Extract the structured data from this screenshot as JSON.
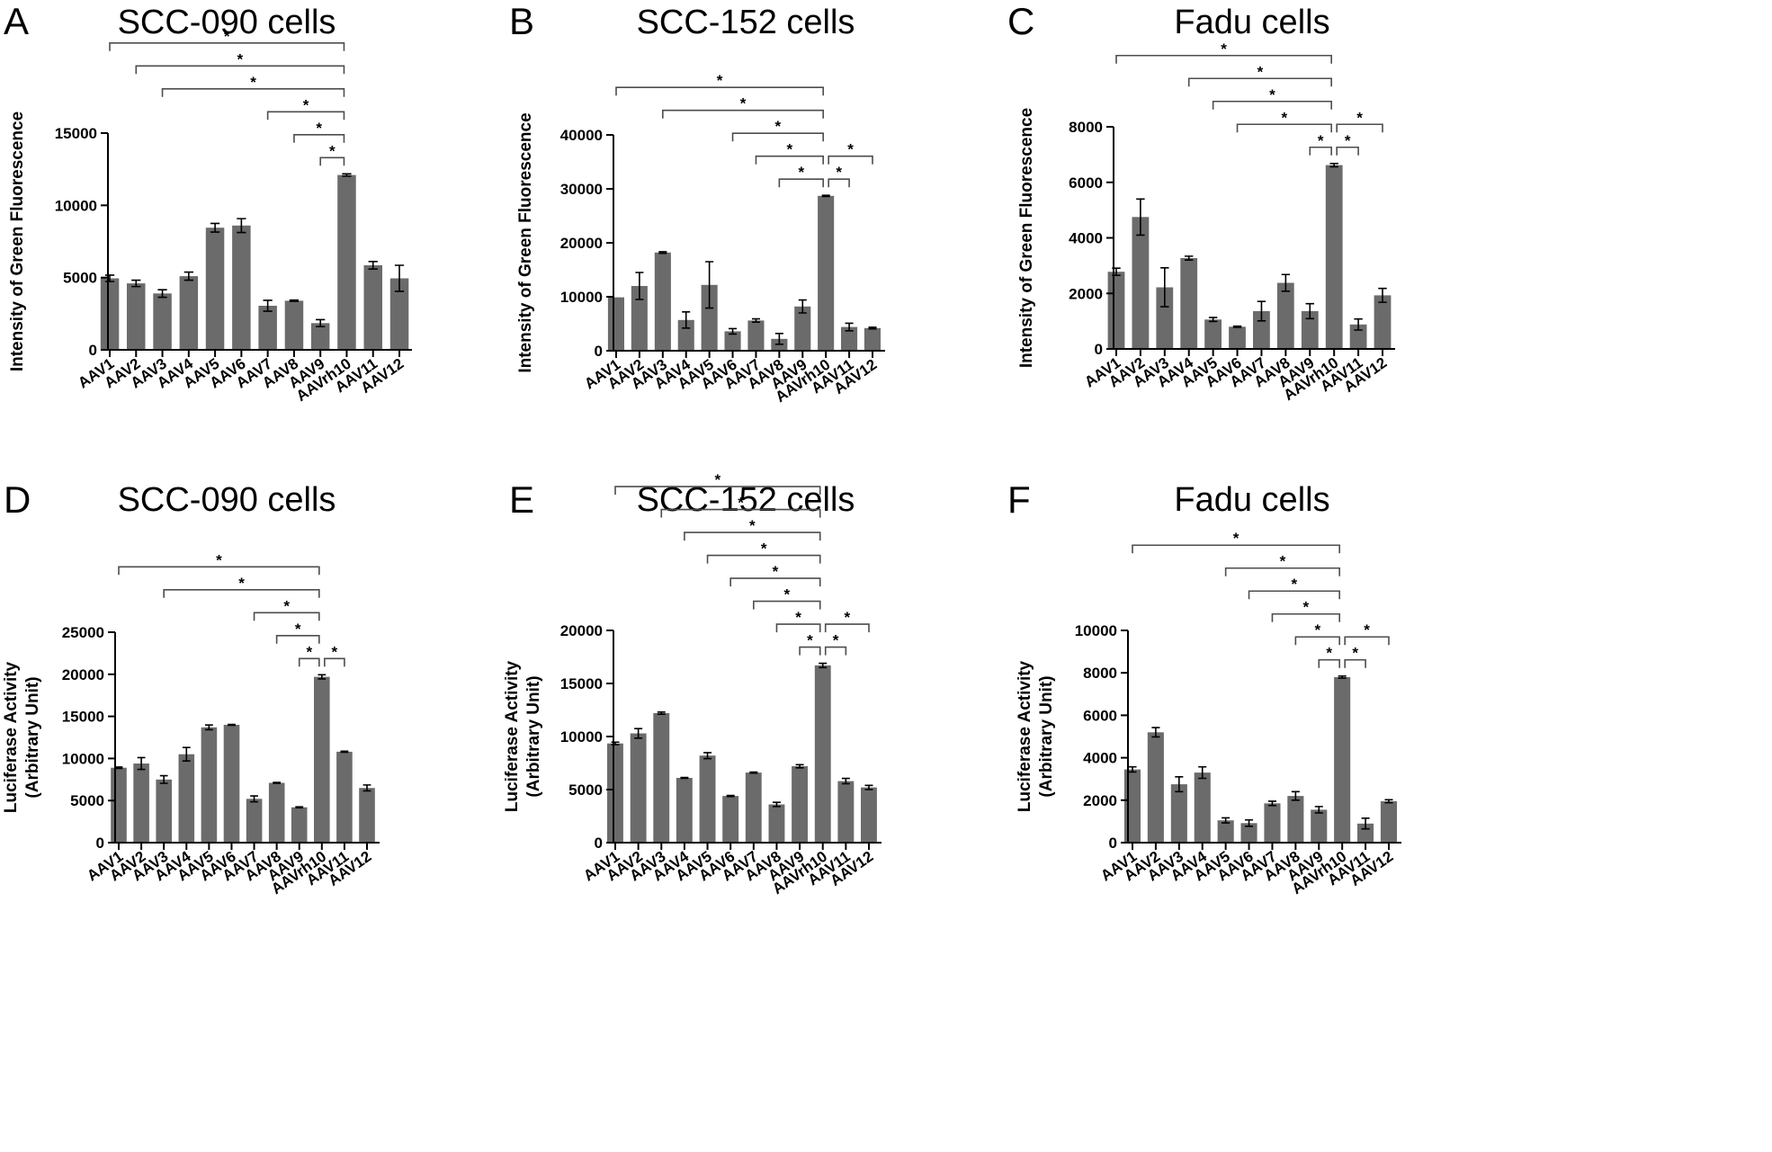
{
  "figure": {
    "caption": ""
  },
  "chart_data": [
    {
      "panel": "A",
      "type": "bar",
      "title": "SCC-090 cells",
      "ylabel": "Intensity of Green Fluorescence",
      "categories": [
        "AAV1",
        "AAV2",
        "AAV3",
        "AAV4",
        "AAV5",
        "AAV6",
        "AAV7",
        "AAV8",
        "AAV9",
        "AAVrh10",
        "AAV11",
        "AAV12"
      ],
      "values": [
        4950,
        4600,
        3900,
        5100,
        8450,
        8600,
        3050,
        3400,
        1850,
        12100,
        5850,
        4950
      ],
      "errors": [
        220,
        220,
        260,
        280,
        300,
        480,
        380,
        40,
        240,
        80,
        260,
        900
      ],
      "ylim": [
        0,
        15000
      ],
      "yticks": [
        0,
        5000,
        10000,
        15000
      ],
      "ytick_labels": [
        "0",
        "5000",
        "10000",
        "15000"
      ],
      "significance": [
        {
          "from": "AAV1",
          "to": "AAVrh10",
          "label": "*"
        },
        {
          "from": "AAV2",
          "to": "AAVrh10",
          "label": "*"
        },
        {
          "from": "AAV3",
          "to": "AAVrh10",
          "label": "*"
        },
        {
          "from": "AAV7",
          "to": "AAVrh10",
          "label": "*"
        },
        {
          "from": "AAV8",
          "to": "AAVrh10",
          "label": "*"
        },
        {
          "from": "AAV9",
          "to": "AAVrh10",
          "label": "*"
        }
      ]
    },
    {
      "panel": "B",
      "type": "bar",
      "title": "SCC-152 cells",
      "ylabel": "Intensity of Green Fluorescence",
      "categories": [
        "AAV1",
        "AAV2",
        "AAV3",
        "AAV4",
        "AAV5",
        "AAV6",
        "AAV7",
        "AAV8",
        "AAV9",
        "AAVrh10",
        "AAV11",
        "AAV12"
      ],
      "values": [
        9900,
        12000,
        18200,
        5700,
        12200,
        3600,
        5600,
        2200,
        8200,
        28700,
        4400,
        4200
      ],
      "errors": [
        0,
        2500,
        150,
        1500,
        4300,
        500,
        300,
        1000,
        1200,
        100,
        700,
        150
      ],
      "ylim": [
        0,
        40000
      ],
      "yticks": [
        0,
        10000,
        20000,
        30000,
        40000
      ],
      "ytick_labels": [
        "0",
        "10000",
        "20000",
        "30000",
        "40000"
      ],
      "significance": [
        {
          "from": "AAV1",
          "to": "AAVrh10",
          "label": "*"
        },
        {
          "from": "AAV3",
          "to": "AAVrh10",
          "label": "*"
        },
        {
          "from": "AAV6",
          "to": "AAVrh10",
          "label": "*"
        },
        {
          "from": "AAV7",
          "to": "AAVrh10",
          "label": "*"
        },
        {
          "from": "AAV8",
          "to": "AAVrh10",
          "label": "*"
        },
        {
          "from": "AAVrh10",
          "to": "AAV11",
          "label": "*"
        },
        {
          "from": "AAVrh10",
          "to": "AAV12",
          "label": "*"
        }
      ]
    },
    {
      "panel": "C",
      "type": "bar",
      "title": "Fadu cells",
      "ylabel": "Intensity of Green Fluorescence",
      "categories": [
        "AAV1",
        "AAV2",
        "AAV3",
        "AAV4",
        "AAV5",
        "AAV6",
        "AAV7",
        "AAV8",
        "AAV9",
        "AAVrh10",
        "AAV11",
        "AAV12"
      ],
      "values": [
        2780,
        4750,
        2220,
        3270,
        1060,
        800,
        1360,
        2380,
        1360,
        6620,
        880,
        1930
      ],
      "errors": [
        130,
        650,
        700,
        70,
        70,
        20,
        350,
        300,
        270,
        60,
        200,
        250
      ],
      "ylim": [
        0,
        8000
      ],
      "yticks": [
        0,
        2000,
        4000,
        6000,
        8000
      ],
      "ytick_labels": [
        "0",
        "2000",
        "4000",
        "6000",
        "8000"
      ],
      "significance": [
        {
          "from": "AAV1",
          "to": "AAVrh10",
          "label": "*"
        },
        {
          "from": "AAV4",
          "to": "AAVrh10",
          "label": "*"
        },
        {
          "from": "AAV5",
          "to": "AAVrh10",
          "label": "*"
        },
        {
          "from": "AAV6",
          "to": "AAVrh10",
          "label": "*"
        },
        {
          "from": "AAV9",
          "to": "AAVrh10",
          "label": "*"
        },
        {
          "from": "AAVrh10",
          "to": "AAV11",
          "label": "*"
        },
        {
          "from": "AAVrh10",
          "to": "AAV12",
          "label": "*"
        }
      ]
    },
    {
      "panel": "D",
      "type": "bar",
      "title": "SCC-090 cells",
      "ylabel": "Luciferase Activity\n(Arbitrary Unit)",
      "categories": [
        "AAV1",
        "AAV2",
        "AAV3",
        "AAV4",
        "AAV5",
        "AAV6",
        "AAV7",
        "AAV8",
        "AAV9",
        "AAVrh10",
        "AAV11",
        "AAV12"
      ],
      "values": [
        8900,
        9400,
        7500,
        10500,
        13700,
        14000,
        5200,
        7100,
        4200,
        19700,
        10800,
        6500
      ],
      "errors": [
        80,
        700,
        450,
        800,
        280,
        50,
        350,
        50,
        60,
        250,
        60,
        350
      ],
      "ylim": [
        0,
        25000
      ],
      "yticks": [
        0,
        5000,
        10000,
        15000,
        20000,
        25000
      ],
      "ytick_labels": [
        "0",
        "5000",
        "10000",
        "15000",
        "20000",
        "25000"
      ],
      "significance": [
        {
          "from": "AAV1",
          "to": "AAVrh10",
          "label": "*"
        },
        {
          "from": "AAV3",
          "to": "AAVrh10",
          "label": "*"
        },
        {
          "from": "AAV7",
          "to": "AAVrh10",
          "label": "*"
        },
        {
          "from": "AAV8",
          "to": "AAVrh10",
          "label": "*"
        },
        {
          "from": "AAV9",
          "to": "AAVrh10",
          "label": "*"
        },
        {
          "from": "AAVrh10",
          "to": "AAV11",
          "label": "*"
        }
      ]
    },
    {
      "panel": "E",
      "type": "bar",
      "title": "SCC-152 cells",
      "ylabel": "Luciferase Activity\n(Arbitrary Unit)",
      "categories": [
        "AAV1",
        "AAV2",
        "AAV3",
        "AAV4",
        "AAV5",
        "AAV6",
        "AAV7",
        "AAV8",
        "AAV9",
        "AAVrh10",
        "AAV11",
        "AAV12"
      ],
      "values": [
        9350,
        10300,
        12200,
        6100,
        8200,
        4400,
        6600,
        3600,
        7200,
        16700,
        5800,
        5200
      ],
      "errors": [
        120,
        450,
        100,
        40,
        280,
        50,
        50,
        200,
        150,
        200,
        250,
        200
      ],
      "ylim": [
        0,
        20000
      ],
      "yticks": [
        0,
        5000,
        10000,
        15000,
        20000
      ],
      "ytick_labels": [
        "0",
        "5000",
        "10000",
        "15000",
        "20000"
      ],
      "significance": [
        {
          "from": "AAV1",
          "to": "AAVrh10",
          "label": "*"
        },
        {
          "from": "AAV3",
          "to": "AAVrh10",
          "label": "*"
        },
        {
          "from": "AAV4",
          "to": "AAVrh10",
          "label": "*"
        },
        {
          "from": "AAV5",
          "to": "AAVrh10",
          "label": "*"
        },
        {
          "from": "AAV6",
          "to": "AAVrh10",
          "label": "*"
        },
        {
          "from": "AAV7",
          "to": "AAVrh10",
          "label": "*"
        },
        {
          "from": "AAV8",
          "to": "AAVrh10",
          "label": "*"
        },
        {
          "from": "AAV9",
          "to": "AAVrh10",
          "label": "*"
        },
        {
          "from": "AAVrh10",
          "to": "AAV11",
          "label": "*"
        },
        {
          "from": "AAVrh10",
          "to": "AAV12",
          "label": "*"
        }
      ]
    },
    {
      "panel": "F",
      "type": "bar",
      "title": "Fadu cells",
      "ylabel": "Luciferase Activity\n(Arbitrary Unit)",
      "categories": [
        "AAV1",
        "AAV2",
        "AAV3",
        "AAV4",
        "AAV5",
        "AAV6",
        "AAV7",
        "AAV8",
        "AAV9",
        "AAVrh10",
        "AAV11",
        "AAV12"
      ],
      "values": [
        3450,
        5200,
        2750,
        3300,
        1050,
        920,
        1850,
        2200,
        1550,
        7800,
        900,
        1950
      ],
      "errors": [
        120,
        220,
        350,
        270,
        120,
        150,
        100,
        200,
        150,
        50,
        250,
        70
      ],
      "ylim": [
        0,
        10000
      ],
      "yticks": [
        0,
        2000,
        4000,
        6000,
        8000,
        10000
      ],
      "ytick_labels": [
        "0",
        "2000",
        "4000",
        "6000",
        "8000",
        "10000"
      ],
      "significance": [
        {
          "from": "AAV1",
          "to": "AAVrh10",
          "label": "*"
        },
        {
          "from": "AAV5",
          "to": "AAVrh10",
          "label": "*"
        },
        {
          "from": "AAV6",
          "to": "AAVrh10",
          "label": "*"
        },
        {
          "from": "AAV7",
          "to": "AAVrh10",
          "label": "*"
        },
        {
          "from": "AAV8",
          "to": "AAVrh10",
          "label": "*"
        },
        {
          "from": "AAV9",
          "to": "AAVrh10",
          "label": "*"
        },
        {
          "from": "AAVrh10",
          "to": "AAV11",
          "label": "*"
        },
        {
          "from": "AAVrh10",
          "to": "AAV12",
          "label": "*"
        }
      ]
    }
  ]
}
